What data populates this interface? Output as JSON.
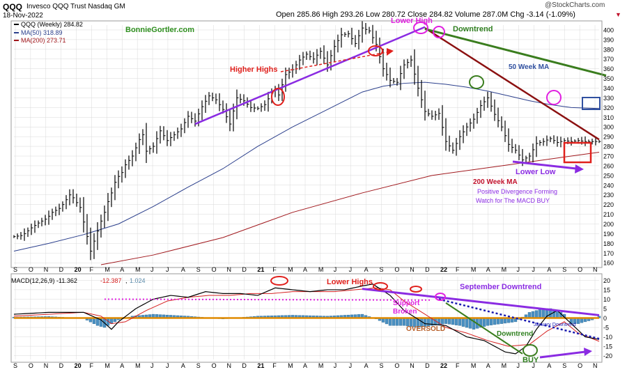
{
  "header": {
    "symbol": "QQQ",
    "name": "Invesco QQQ Trust Nasdaq GM",
    "date": "18-Nov-2022",
    "ohlc_text": "Open 285.86  High 293.26  Low 280.72  Close 284.82  Volume 287.0M  Chg -3.14 (-1.09%)",
    "change_arrow": "▼",
    "source": "@StockCharts.com"
  },
  "colors": {
    "price": "#000000",
    "ma50": "#2b3f8c",
    "ma200": "#a0171c",
    "purple": "#8a2be2",
    "darkred": "#8b1010",
    "green": "#3a7d1e",
    "red": "#e0201c",
    "magenta": "#e020e0",
    "navy": "#1a1ab0",
    "orange": "#e08a00",
    "hist": "#4a90c2",
    "grid": "#d8d8d8"
  },
  "chart_data": [
    {
      "type": "line",
      "title": "QQQ (Weekly) 284.82",
      "ylim": [
        158,
        405
      ],
      "yticks": [
        160,
        170,
        180,
        190,
        200,
        210,
        220,
        230,
        240,
        250,
        260,
        270,
        280,
        290,
        300,
        310,
        320,
        330,
        340,
        350,
        360,
        370,
        380,
        390,
        400
      ],
      "x_tick_labels": [
        "S",
        "O",
        "N",
        "D",
        "20",
        "F",
        "M",
        "A",
        "M",
        "J",
        "J",
        "A",
        "S",
        "O",
        "N",
        "D",
        "21",
        "F",
        "M",
        "A",
        "M",
        "J",
        "J",
        "A",
        "S",
        "O",
        "N",
        "D",
        "22",
        "F",
        "M",
        "A",
        "M",
        "J",
        "J",
        "A",
        "S",
        "O",
        "N"
      ],
      "legend": [
        "QQQ (Weekly) 284.82",
        "MA(50) 318.89",
        "MA(200) 273.71"
      ],
      "series": [
        {
          "name": "QQQ (Weekly) 284.82",
          "x": [
            0,
            2,
            3,
            5,
            7,
            9,
            10,
            11,
            13,
            14,
            15,
            16,
            17,
            19,
            22,
            25,
            26,
            27,
            28,
            29,
            30,
            31,
            32,
            34,
            36,
            37,
            38,
            40,
            42,
            44,
            46,
            48,
            50,
            52,
            54,
            56,
            58,
            60,
            62,
            64,
            66,
            68,
            70,
            72,
            74,
            75,
            76,
            78,
            80,
            82,
            84,
            86,
            88,
            90,
            92,
            94,
            96,
            98,
            100,
            102,
            104,
            106,
            108,
            110,
            112,
            114,
            116,
            118,
            120,
            122,
            124,
            126,
            128,
            130,
            132,
            134,
            136,
            138,
            140,
            142,
            144,
            146,
            148,
            150,
            152,
            154,
            156,
            158,
            160,
            162,
            164,
            166,
            168
          ],
          "values": [
            187,
            188,
            190,
            196,
            201,
            205,
            208,
            212,
            216,
            220,
            225,
            230,
            227,
            217,
            172,
            203,
            212,
            223,
            232,
            243,
            249,
            253,
            261,
            270,
            287,
            292,
            275,
            280,
            296,
            286,
            292,
            298,
            311,
            306,
            321,
            332,
            328,
            318,
            303,
            330,
            327,
            320,
            319,
            323,
            335,
            338,
            333,
            354,
            359,
            369,
            375,
            370,
            378,
            364,
            383,
            395,
            396,
            386,
            402,
            399,
            385,
            360,
            348,
            346,
            364,
            369,
            340,
            316,
            311,
            314,
            285,
            276,
            290,
            300,
            308,
            322,
            330,
            313,
            300,
            282,
            276,
            266,
            270,
            283,
            285,
            288,
            284,
            286,
            285,
            286,
            285,
            285,
            285
          ]
        },
        {
          "name": "MA(50) 318.89",
          "x": [
            0,
            10,
            20,
            30,
            40,
            50,
            60,
            70,
            80,
            90,
            100,
            106,
            112,
            118,
            124,
            130,
            136,
            142,
            148,
            154,
            160,
            168
          ],
          "values": [
            172,
            180,
            189,
            200,
            218,
            238,
            257,
            280,
            300,
            318,
            336,
            342,
            345,
            346,
            344,
            341,
            337,
            332,
            327,
            323,
            320,
            319
          ]
        },
        {
          "name": "MA(200) 273.71",
          "x": [
            25,
            40,
            60,
            80,
            100,
            120,
            140,
            160,
            168
          ],
          "values": [
            158,
            168,
            186,
            212,
            232,
            250,
            260,
            270,
            274
          ]
        }
      ]
    },
    {
      "type": "line",
      "title": "MACD(12,26,9) -11.362, -12.387, 1.024",
      "ylim": [
        -22,
        22
      ],
      "yticks": [
        20,
        15,
        10,
        5,
        0,
        -5,
        -10,
        -15,
        -20
      ],
      "x_tick_labels": [
        "S",
        "O",
        "N",
        "D",
        "20",
        "F",
        "M",
        "A",
        "M",
        "J",
        "J",
        "A",
        "S",
        "O",
        "N",
        "D",
        "21",
        "F",
        "M",
        "A",
        "M",
        "J",
        "J",
        "A",
        "S",
        "O",
        "N",
        "D",
        "22",
        "F",
        "M",
        "A",
        "M",
        "J",
        "J",
        "A",
        "S",
        "O",
        "N"
      ],
      "legend": [
        "MACD(12,26,9) -11.362",
        "-12.387",
        "1.024"
      ],
      "series": [
        {
          "name": "MACD(12,26,9) -11.362",
          "x": [
            0,
            10,
            20,
            25,
            28,
            30,
            35,
            40,
            45,
            50,
            55,
            60,
            65,
            70,
            75,
            80,
            85,
            90,
            95,
            100,
            103,
            108,
            112,
            118,
            124,
            130,
            135,
            138,
            141,
            144,
            147,
            150,
            153,
            156,
            160,
            164,
            168
          ],
          "values": [
            2,
            3,
            3,
            -1,
            -6,
            -2,
            5,
            10,
            12,
            11,
            14,
            13,
            13,
            12,
            16,
            15,
            14,
            15,
            15,
            17,
            18,
            12,
            4,
            -3,
            -4,
            -10,
            -12,
            -15,
            -18,
            -19,
            -15,
            -6,
            1,
            4,
            -3,
            -10,
            -11.362
          ]
        },
        {
          "name": "-12.387",
          "x": [
            0,
            10,
            20,
            25,
            28,
            32,
            38,
            44,
            50,
            56,
            62,
            68,
            74,
            80,
            86,
            92,
            98,
            104,
            108,
            112,
            118,
            124,
            130,
            136,
            142,
            148,
            153,
            158,
            162,
            168
          ],
          "values": [
            1,
            2,
            3,
            1,
            -3,
            -2,
            4,
            9,
            11,
            12,
            12,
            13,
            13,
            14,
            14,
            14,
            15,
            16,
            15,
            9,
            2,
            -5,
            -8,
            -12,
            -15,
            -14,
            -7,
            -2,
            -8,
            -12.387
          ]
        },
        {
          "name": "1.024",
          "x": [
            0,
            10,
            20,
            24,
            26,
            28,
            30,
            34,
            40,
            50,
            60,
            70,
            80,
            90,
            100,
            104,
            108,
            112,
            116,
            120,
            124,
            128,
            132,
            136,
            140,
            144,
            148,
            150,
            152,
            154,
            156,
            158,
            160,
            162,
            164,
            166,
            168
          ],
          "values": [
            0.5,
            0.8,
            -0.2,
            -4,
            -5,
            -3,
            -1,
            1,
            2,
            1,
            -0.5,
            1,
            1.5,
            1,
            2,
            -0.5,
            -4,
            -4,
            -5,
            -4,
            -3,
            -4,
            -6,
            -4,
            -3,
            -2,
            3,
            4,
            5,
            5,
            4,
            2,
            -3,
            -3,
            -2,
            -1,
            1.024
          ]
        }
      ]
    }
  ],
  "annotations": {
    "watermark": "BonnieGortler.com",
    "lower_high": "Lower High",
    "downtrend": "Downtrend",
    "higher_highs": "Higher Highs",
    "ma50_label": "50 Week MA",
    "lower_low": "Lower Low",
    "ma200_label": "200 Week MA",
    "div1": "Positive Divergence Forming",
    "div2": "Watch for The MACD BUY",
    "lower_highs": "Lower Highs",
    "sept_downtrend": "September Downtrend",
    "support1": "Support",
    "support2": "Broken",
    "jan_downtrend": "January Downtrend",
    "oversold": "OVERSOLD",
    "downtrend2": "Downtrend",
    "buy": "BUY"
  }
}
